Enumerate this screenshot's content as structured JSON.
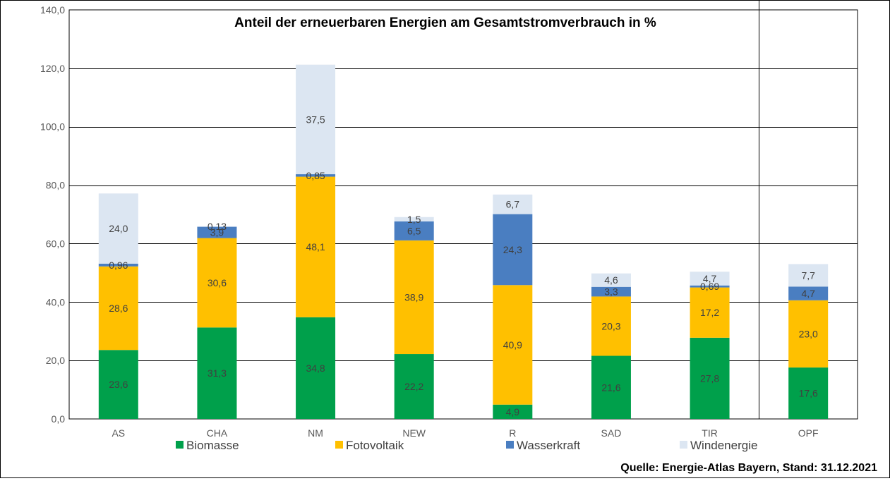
{
  "chart_data": {
    "type": "bar",
    "stacked": true,
    "title": "Anteil der erneuerbaren Energien am Gesamtstromverbrauch in %",
    "xlabel": "",
    "ylabel": "",
    "ylim": [
      0,
      140
    ],
    "yticks": [
      "0,0",
      "20,0",
      "40,0",
      "60,0",
      "80,0",
      "100,0",
      "120,0",
      "140,0"
    ],
    "categories": [
      "AS",
      "CHA",
      "NM",
      "NEW",
      "R",
      "SAD",
      "TIR",
      "OPF"
    ],
    "series": [
      {
        "name": "Biomasse",
        "color": "#00A04B",
        "values": [
          23.6,
          31.3,
          34.8,
          22.2,
          4.9,
          21.6,
          27.8,
          17.6
        ],
        "labels": [
          "23,6",
          "31,3",
          "34,8",
          "22,2",
          "4,9",
          "21,6",
          "27,8",
          "17,6"
        ]
      },
      {
        "name": "Fotovoltaik",
        "color": "#FFC000",
        "values": [
          28.6,
          30.6,
          48.1,
          38.9,
          40.9,
          20.3,
          17.2,
          23.0
        ],
        "labels": [
          "28,6",
          "30,6",
          "48,1",
          "38,9",
          "40,9",
          "20,3",
          "17,2",
          "23,0"
        ]
      },
      {
        "name": "Wasserkraft",
        "color": "#4A7EC1",
        "values": [
          0.96,
          3.9,
          0.85,
          6.5,
          24.3,
          3.3,
          0.69,
          4.7
        ],
        "labels": [
          "0,96",
          "3,9",
          "0,85",
          "6,5",
          "24,3",
          "3,3",
          "0,69",
          "4,7"
        ]
      },
      {
        "name": "Windenergie",
        "color": "#DCE6F2",
        "values": [
          24.0,
          0.13,
          37.5,
          1.5,
          6.7,
          4.6,
          4.7,
          7.7
        ],
        "labels": [
          "24,0",
          "0,13",
          "37,5",
          "1,5",
          "6,7",
          "4,6",
          "4,7",
          "7,7"
        ]
      }
    ],
    "grid": true,
    "legend_position": "bottom",
    "separator_before_category": "OPF"
  },
  "source_note": "Quelle: Energie-Atlas Bayern, Stand: 31.12.2021"
}
